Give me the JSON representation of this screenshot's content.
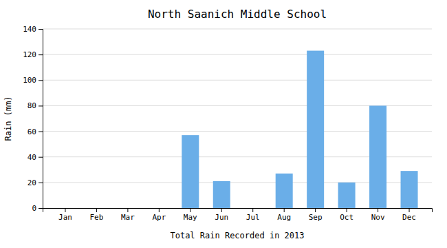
{
  "chart_data": {
    "type": "bar",
    "title": "North Saanich Middle School",
    "xlabel": "Total Rain Recorded in 2013",
    "ylabel": "Rain (mm)",
    "categories": [
      "Jan",
      "Feb",
      "Mar",
      "Apr",
      "May",
      "Jun",
      "Jul",
      "Aug",
      "Sep",
      "Oct",
      "Nov",
      "Dec"
    ],
    "values": [
      0,
      0,
      0,
      0,
      57,
      21,
      0,
      27,
      123,
      20,
      80,
      29
    ],
    "color": "#6aaee8",
    "ylim": [
      0,
      140
    ],
    "yticks": [
      0,
      20,
      40,
      60,
      80,
      100,
      120,
      140
    ],
    "grid": true
  }
}
